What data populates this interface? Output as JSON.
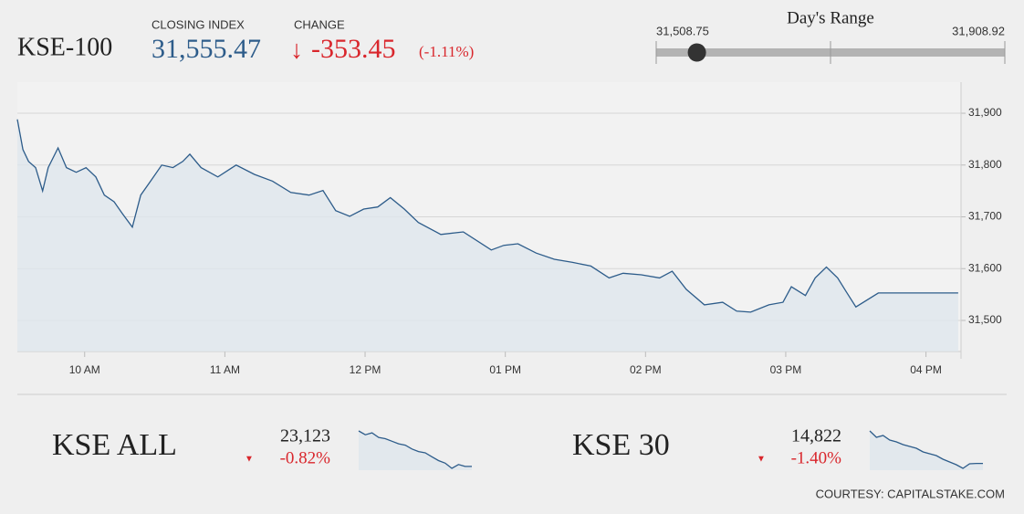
{
  "header": {
    "name": "KSE-100",
    "closing_label": "CLOSING INDEX",
    "closing_value": {
      "value": 31555.47,
      "label": "31,555.47"
    },
    "change_label": "CHANGE",
    "change": "-353.45",
    "change_pct": "(-1.11%)"
  },
  "day_range": {
    "label": "Day's Range",
    "low": {
      "value": 31508.75,
      "label": "31,508.75"
    },
    "high": {
      "value": 31908.92,
      "label": "31,908.92"
    }
  },
  "chart_data": [
    {
      "type": "line",
      "color": "#2d5c8a",
      "x": [
        9.52,
        9.56,
        9.6,
        9.65,
        9.7,
        9.74,
        9.81,
        9.87,
        9.94,
        10.01,
        10.08,
        10.14,
        10.21,
        10.27,
        10.34,
        10.4,
        10.47,
        10.55,
        10.63,
        10.7,
        10.75,
        10.83,
        10.95,
        11.08,
        11.21,
        11.34,
        11.47,
        11.6,
        11.7,
        11.79,
        11.89,
        11.99,
        12.09,
        12.18,
        12.28,
        12.38,
        12.54,
        12.7,
        12.9,
        12.99,
        13.09,
        13.22,
        13.35,
        13.48,
        13.61,
        13.74,
        13.84,
        13.97,
        14.1,
        14.19,
        14.29,
        14.42,
        14.55,
        14.65,
        14.75,
        14.88,
        14.98,
        15.04,
        15.14,
        15.21,
        15.29,
        15.37,
        15.43,
        15.5,
        15.66,
        16.23
      ],
      "values": [
        31888,
        31830,
        31807,
        31795,
        31750,
        31795,
        31833,
        31795,
        31786,
        31795,
        31777,
        31742,
        31729,
        31706,
        31680,
        31742,
        31769,
        31800,
        31795,
        31807,
        31821,
        31795,
        31777,
        31800,
        31782,
        31769,
        31747,
        31742,
        31751,
        31712,
        31701,
        31715,
        31719,
        31737,
        31715,
        31689,
        31666,
        31671,
        31636,
        31645,
        31648,
        31630,
        31618,
        31612,
        31605,
        31582,
        31591,
        31588,
        31582,
        31595,
        31560,
        31530,
        31535,
        31518,
        31516,
        31530,
        31535,
        31565,
        31548,
        31582,
        31603,
        31582,
        31556,
        31526,
        31553,
        31553
      ],
      "xlim": [
        9.52,
        16.25
      ],
      "ylim": [
        31440,
        31960
      ],
      "xticks": [
        {
          "value": 10,
          "label": "10 AM"
        },
        {
          "value": 11,
          "label": "11 AM"
        },
        {
          "value": 12,
          "label": "12 PM"
        },
        {
          "value": 13,
          "label": "01 PM"
        },
        {
          "value": 14,
          "label": "02 PM"
        },
        {
          "value": 15,
          "label": "03 PM"
        },
        {
          "value": 16,
          "label": "04 PM"
        }
      ],
      "yticks": [
        {
          "value": 31500,
          "label": "31,500"
        },
        {
          "value": 31600,
          "label": "31,600"
        },
        {
          "value": 31700,
          "label": "31,700"
        },
        {
          "value": 31800,
          "label": "31,800"
        },
        {
          "value": 31900,
          "label": "31,900"
        }
      ],
      "grid": true
    },
    {
      "type": "line",
      "color": "#2d5c8a",
      "values": [
        23400,
        23370,
        23385,
        23350,
        23340,
        23320,
        23300,
        23290,
        23260,
        23240,
        23230,
        23200,
        23170,
        23150,
        23110,
        23140,
        23125,
        23125
      ]
    },
    {
      "type": "line",
      "color": "#2d5c8a",
      "values": [
        15000,
        14965,
        14975,
        14950,
        14940,
        14925,
        14915,
        14905,
        14885,
        14875,
        14865,
        14845,
        14830,
        14815,
        14795,
        14820,
        14822,
        14822
      ]
    }
  ],
  "indices": [
    {
      "name": "KSE ALL",
      "value": "23,123",
      "change": "-0.82%"
    },
    {
      "name": "KSE 30",
      "value": "14,822",
      "change": "-1.40%"
    }
  ],
  "footer": "COURTESY: CAPITALSTAKE.COM"
}
